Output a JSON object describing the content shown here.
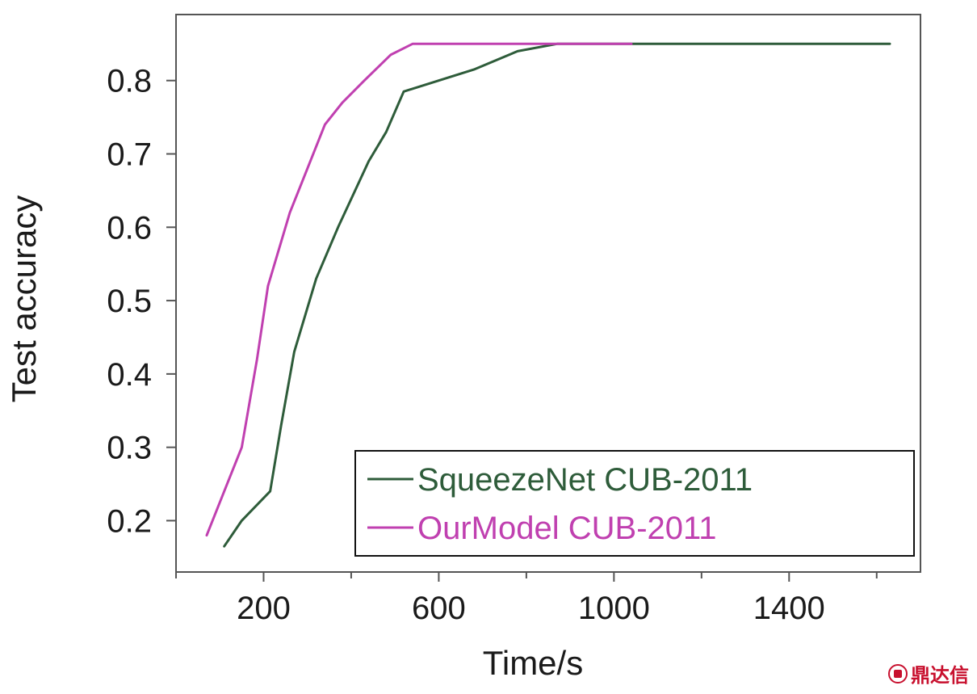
{
  "chart_data": {
    "type": "line",
    "title": "",
    "xlabel": "Time/s",
    "ylabel": "Test accuracy",
    "xlim": [
      0,
      1700
    ],
    "ylim": [
      0.13,
      0.89
    ],
    "xticks": [
      200,
      600,
      1000,
      1400
    ],
    "x_minor_ticks": [
      0,
      400,
      800,
      1200,
      1600
    ],
    "yticks": [
      0.2,
      0.3,
      0.4,
      0.5,
      0.6,
      0.7,
      0.8
    ],
    "ytick_labels": [
      "0.2",
      "0.3",
      "0.4",
      "0.5",
      "0.6",
      "0.7",
      "0.8"
    ],
    "xtick_labels": [
      "200",
      "600",
      "1000",
      "1400"
    ],
    "grid": false,
    "legend_position": "bottom-right",
    "series": [
      {
        "name": "SqueezeNet CUB-2011",
        "color": "#2e5c3a",
        "points": [
          [
            110,
            0.165
          ],
          [
            150,
            0.2
          ],
          [
            215,
            0.24
          ],
          [
            240,
            0.33
          ],
          [
            270,
            0.43
          ],
          [
            320,
            0.53
          ],
          [
            370,
            0.6
          ],
          [
            440,
            0.69
          ],
          [
            480,
            0.73
          ],
          [
            520,
            0.785
          ],
          [
            600,
            0.8
          ],
          [
            680,
            0.815
          ],
          [
            780,
            0.84
          ],
          [
            870,
            0.85
          ],
          [
            1000,
            0.85
          ],
          [
            1200,
            0.85
          ],
          [
            1400,
            0.85
          ],
          [
            1630,
            0.85
          ]
        ]
      },
      {
        "name": "OurModel CUB-2011",
        "color": "#c040b0",
        "points": [
          [
            70,
            0.18
          ],
          [
            110,
            0.24
          ],
          [
            150,
            0.3
          ],
          [
            185,
            0.42
          ],
          [
            210,
            0.52
          ],
          [
            260,
            0.62
          ],
          [
            300,
            0.68
          ],
          [
            340,
            0.74
          ],
          [
            380,
            0.77
          ],
          [
            430,
            0.8
          ],
          [
            490,
            0.835
          ],
          [
            540,
            0.85
          ],
          [
            700,
            0.85
          ],
          [
            870,
            0.85
          ],
          [
            1040,
            0.85
          ]
        ]
      }
    ]
  },
  "watermark": {
    "text": "鼎达信",
    "color": "#c8102e"
  }
}
